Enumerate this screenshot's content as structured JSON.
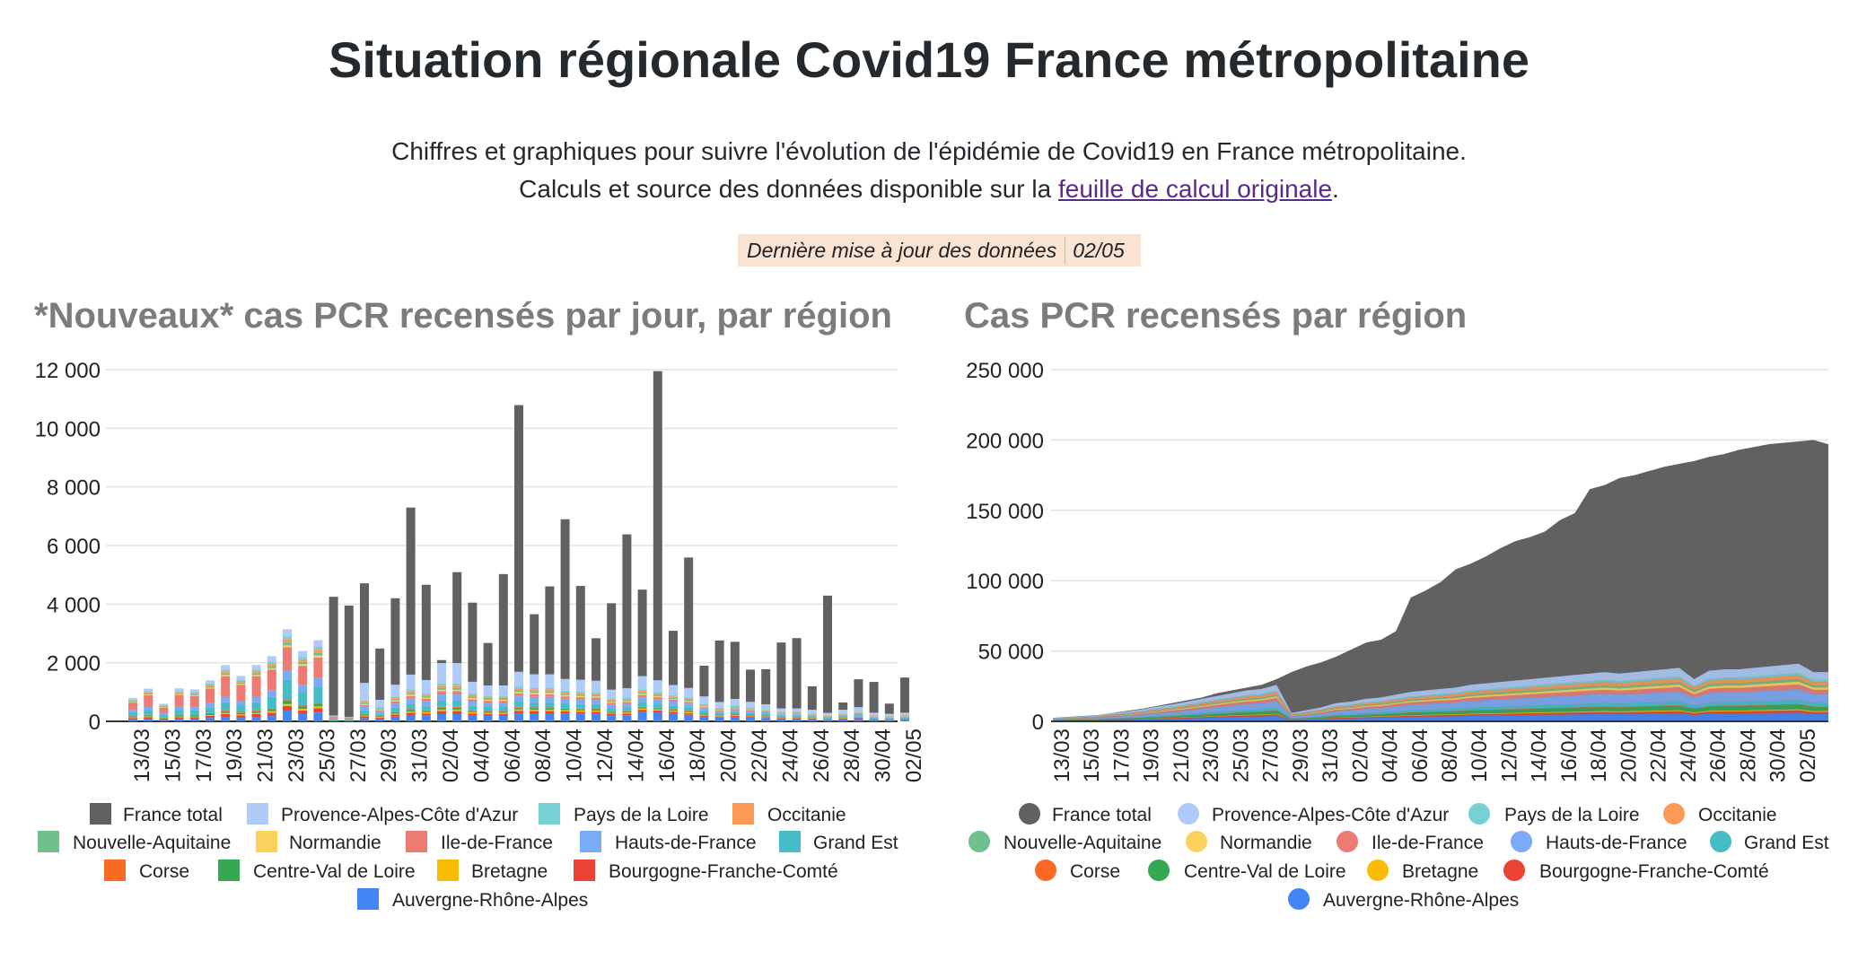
{
  "page": {
    "title": "Situation régionale Covid19 France métropolitaine",
    "subtitle_line1": "Chiffres et graphiques pour suivre l'évolution de l'épidémie de Covid19 en France métropolitaine.",
    "subtitle_line2_prefix": "Calculs et source des données disponible sur la ",
    "subtitle_link": "feuille de calcul originale",
    "subtitle_line2_suffix": ".",
    "update_label": "Dernière mise à jour des données",
    "update_value": "02/05"
  },
  "colors": {
    "France total": "#616161",
    "Provence-Alpes-Côte d'Azur": "#aecbfa",
    "Pays de la Loire": "#78d0d4",
    "Occitanie": "#fb9a57",
    "Nouvelle-Aquitaine": "#6fc08d",
    "Normandie": "#fbd25c",
    "Ile-de-France": "#ee7a74",
    "Hauts-de-France": "#7baaf7",
    "Grand Est": "#46bdc6",
    "Corse": "#fa6a24",
    "Centre-Val de Loire": "#34a853",
    "Bretagne": "#fbbc04",
    "Bourgogne-Franche-Comté": "#ea4335",
    "Auvergne-Rhône-Alpes": "#4285f4"
  },
  "chart_data": [
    {
      "type": "bar",
      "stacked": true,
      "title": "*Nouveaux* cas PCR recensés par jour, par région",
      "ylim": [
        0,
        12000
      ],
      "yticks": [
        "0",
        "2 000",
        "4 000",
        "6 000",
        "8 000",
        "10 000",
        "12 000"
      ],
      "grid": true,
      "legend": "bottom",
      "categories": [
        "13/03",
        "14/03",
        "15/03",
        "16/03",
        "17/03",
        "18/03",
        "19/03",
        "20/03",
        "21/03",
        "22/03",
        "23/03",
        "24/03",
        "25/03",
        "26/03",
        "27/03",
        "28/03",
        "29/03",
        "30/03",
        "31/03",
        "01/04",
        "02/04",
        "03/04",
        "04/04",
        "05/04",
        "06/04",
        "07/04",
        "08/04",
        "09/04",
        "10/04",
        "11/04",
        "12/04",
        "13/04",
        "14/04",
        "15/04",
        "16/04",
        "17/04",
        "18/04",
        "19/04",
        "20/04",
        "21/04",
        "22/04",
        "23/04",
        "24/04",
        "25/04",
        "26/04",
        "27/04",
        "28/04",
        "29/04",
        "30/04",
        "01/05",
        "02/05"
      ],
      "xticks": [
        "13/03",
        "15/03",
        "17/03",
        "19/03",
        "21/03",
        "23/03",
        "25/03",
        "27/03",
        "29/03",
        "31/03",
        "02/04",
        "04/04",
        "06/04",
        "08/04",
        "10/04",
        "12/04",
        "14/04",
        "16/04",
        "18/04",
        "20/04",
        "22/04",
        "24/04",
        "26/04",
        "28/04",
        "30/04",
        "02/05"
      ],
      "regions_total": [
        800,
        1100,
        650,
        1150,
        1100,
        1400,
        1900,
        1550,
        1900,
        2300,
        3150,
        2500,
        2900,
        200,
        150,
        1200,
        800,
        1400,
        1800,
        1550,
        2100,
        2100,
        1500,
        1400,
        1400,
        1900,
        1800,
        1800,
        1600,
        1550,
        1500,
        1150,
        1200,
        1600,
        1450,
        1300,
        1200,
        900,
        700,
        800,
        700,
        600,
        450,
        450,
        400,
        300,
        400,
        500,
        300,
        250,
        300
      ],
      "series": [
        {
          "name": "France total",
          "values": [
            0,
            0,
            0,
            0,
            0,
            0,
            0,
            0,
            0,
            0,
            0,
            0,
            0,
            4050,
            3800,
            3400,
            1750,
            2950,
            5700,
            3250,
            100,
            3100,
            2700,
            1450,
            3800,
            9100,
            2050,
            3000,
            5450,
            3200,
            1450,
            2950,
            5250,
            2950,
            10550,
            1850,
            4450,
            1050,
            2100,
            1950,
            1100,
            1200,
            2250,
            2400,
            800,
            4000,
            250,
            950,
            1050,
            350,
            1200
          ]
        },
        {
          "name": "Provence-Alpes-Côte d'Azur",
          "values": [
            60,
            90,
            50,
            90,
            90,
            110,
            150,
            120,
            150,
            180,
            240,
            200,
            230,
            20,
            15,
            600,
            250,
            400,
            500,
            450,
            700,
            700,
            400,
            350,
            350,
            500,
            450,
            450,
            400,
            400,
            380,
            300,
            320,
            450,
            400,
            350,
            320,
            250,
            200,
            220,
            200,
            170,
            120,
            120,
            110,
            80,
            110,
            140,
            80,
            70,
            80
          ]
        },
        {
          "name": "Pays de la Loire",
          "values": [
            25,
            35,
            20,
            35,
            35,
            45,
            60,
            50,
            60,
            75,
            100,
            80,
            95,
            5,
            5,
            40,
            25,
            45,
            60,
            50,
            70,
            70,
            50,
            45,
            45,
            60,
            60,
            60,
            50,
            50,
            50,
            40,
            40,
            50,
            45,
            40,
            40,
            30,
            20,
            25,
            20,
            20,
            15,
            15,
            15,
            10,
            15,
            15,
            10,
            10,
            10
          ]
        },
        {
          "name": "Occitanie",
          "values": [
            30,
            40,
            25,
            40,
            40,
            50,
            70,
            55,
            70,
            85,
            115,
            90,
            105,
            10,
            5,
            45,
            30,
            50,
            65,
            55,
            75,
            75,
            55,
            50,
            50,
            70,
            65,
            65,
            55,
            55,
            55,
            40,
            45,
            55,
            50,
            45,
            45,
            30,
            25,
            30,
            25,
            20,
            15,
            15,
            15,
            10,
            15,
            20,
            10,
            10,
            10
          ]
        },
        {
          "name": "Nouvelle-Aquitaine",
          "values": [
            25,
            35,
            20,
            35,
            35,
            45,
            60,
            50,
            60,
            75,
            100,
            80,
            95,
            5,
            5,
            40,
            25,
            45,
            60,
            50,
            70,
            70,
            50,
            45,
            45,
            60,
            60,
            60,
            50,
            50,
            50,
            40,
            40,
            50,
            45,
            40,
            40,
            30,
            20,
            25,
            20,
            20,
            15,
            15,
            15,
            10,
            15,
            15,
            10,
            10,
            10
          ]
        },
        {
          "name": "Normandie",
          "values": [
            20,
            25,
            15,
            25,
            25,
            30,
            40,
            35,
            40,
            50,
            65,
            55,
            65,
            5,
            5,
            30,
            20,
            35,
            45,
            40,
            50,
            50,
            40,
            35,
            35,
            45,
            45,
            45,
            40,
            40,
            40,
            30,
            30,
            40,
            35,
            30,
            30,
            25,
            15,
            20,
            15,
            15,
            10,
            10,
            10,
            10,
            10,
            10,
            10,
            5,
            10
          ]
        },
        {
          "name": "Ile-de-France",
          "values": [
            250,
            400,
            180,
            400,
            380,
            500,
            700,
            550,
            700,
            700,
            800,
            650,
            700,
            60,
            40,
            60,
            40,
            70,
            90,
            80,
            110,
            110,
            80,
            70,
            70,
            90,
            90,
            90,
            80,
            80,
            80,
            60,
            60,
            80,
            70,
            60,
            60,
            45,
            35,
            40,
            35,
            30,
            25,
            25,
            20,
            15,
            20,
            25,
            15,
            15,
            15
          ]
        },
        {
          "name": "Hauts-de-France",
          "values": [
            80,
            110,
            65,
            115,
            110,
            140,
            190,
            155,
            190,
            230,
            315,
            250,
            290,
            20,
            15,
            120,
            80,
            140,
            180,
            155,
            210,
            210,
            150,
            140,
            140,
            190,
            180,
            180,
            160,
            155,
            150,
            115,
            120,
            160,
            145,
            130,
            120,
            90,
            70,
            80,
            70,
            60,
            45,
            45,
            40,
            30,
            40,
            50,
            30,
            25,
            30
          ]
        },
        {
          "name": "Grand Est",
          "values": [
            140,
            160,
            95,
            170,
            160,
            200,
            280,
            230,
            280,
            380,
            680,
            460,
            550,
            35,
            25,
            120,
            80,
            140,
            180,
            155,
            210,
            210,
            150,
            140,
            140,
            190,
            180,
            180,
            160,
            155,
            150,
            115,
            120,
            160,
            145,
            130,
            120,
            90,
            70,
            80,
            70,
            60,
            45,
            45,
            40,
            30,
            40,
            50,
            30,
            25,
            30
          ]
        },
        {
          "name": "Corse",
          "values": [
            10,
            15,
            5,
            15,
            15,
            20,
            25,
            20,
            25,
            30,
            40,
            30,
            35,
            0,
            0,
            15,
            10,
            15,
            20,
            15,
            25,
            25,
            15,
            15,
            15,
            20,
            20,
            20,
            15,
            15,
            15,
            10,
            15,
            15,
            15,
            15,
            15,
            10,
            5,
            10,
            5,
            5,
            5,
            5,
            5,
            5,
            5,
            5,
            5,
            5,
            5
          ]
        },
        {
          "name": "Centre-Val de Loire",
          "values": [
            25,
            35,
            20,
            35,
            35,
            45,
            60,
            50,
            60,
            75,
            100,
            80,
            95,
            5,
            5,
            40,
            25,
            45,
            60,
            50,
            70,
            70,
            50,
            45,
            45,
            60,
            60,
            60,
            50,
            50,
            50,
            40,
            40,
            50,
            45,
            40,
            40,
            30,
            20,
            25,
            20,
            20,
            15,
            15,
            15,
            10,
            15,
            15,
            10,
            10,
            10
          ]
        },
        {
          "name": "Bretagne",
          "values": [
            20,
            25,
            15,
            25,
            25,
            30,
            40,
            35,
            40,
            50,
            65,
            55,
            65,
            5,
            5,
            30,
            20,
            35,
            45,
            40,
            50,
            50,
            40,
            35,
            35,
            45,
            45,
            45,
            40,
            40,
            40,
            30,
            30,
            40,
            35,
            30,
            30,
            25,
            15,
            20,
            15,
            15,
            10,
            10,
            10,
            10,
            10,
            10,
            10,
            5,
            10
          ]
        },
        {
          "name": "Bourgogne-Franche-Comté",
          "values": [
            40,
            55,
            35,
            55,
            55,
            70,
            95,
            80,
            95,
            115,
            160,
            125,
            145,
            10,
            10,
            60,
            40,
            70,
            90,
            80,
            105,
            105,
            75,
            70,
            70,
            95,
            90,
            90,
            80,
            80,
            75,
            60,
            60,
            80,
            75,
            65,
            60,
            45,
            35,
            40,
            35,
            30,
            25,
            25,
            20,
            15,
            20,
            25,
            15,
            15,
            15
          ]
        },
        {
          "name": "Auvergne-Rhône-Alpes",
          "values": [
            75,
            90,
            55,
            85,
            85,
            115,
            150,
            120,
            150,
            180,
            365,
            245,
            300,
            20,
            15,
            110,
            90,
            160,
            200,
            190,
            245,
            245,
            195,
            185,
            185,
            265,
            260,
            260,
            265,
            250,
            250,
            200,
            210,
            315,
            295,
            265,
            220,
            150,
            130,
            150,
            135,
            115,
            95,
            95,
            80,
            55,
            80,
            105,
            60,
            50,
            60
          ]
        }
      ]
    },
    {
      "type": "area",
      "stacked": true,
      "title": "Cas PCR recensés par région",
      "ylim": [
        0,
        250000
      ],
      "yticks": [
        "0",
        "50 000",
        "100 000",
        "150 000",
        "200 000",
        "250 000"
      ],
      "grid": true,
      "legend": "bottom",
      "xticks": [
        "13/03",
        "15/03",
        "17/03",
        "19/03",
        "21/03",
        "23/03",
        "25/03",
        "27/03",
        "29/03",
        "31/03",
        "02/04",
        "04/04",
        "06/04",
        "08/04",
        "10/04",
        "12/04",
        "14/04",
        "16/04",
        "18/04",
        "20/04",
        "22/04",
        "24/04",
        "26/04",
        "28/04",
        "30/04",
        "02/05"
      ],
      "total": [
        2500,
        3200,
        3800,
        4500,
        6000,
        7500,
        9000,
        11000,
        13000,
        15000,
        17000,
        20000,
        22000,
        24000,
        26000,
        30000,
        35000,
        39000,
        42000,
        46000,
        51000,
        56000,
        58000,
        64000,
        88000,
        93000,
        99000,
        108000,
        112000,
        117000,
        123000,
        128000,
        131000,
        135000,
        143000,
        148000,
        165000,
        168000,
        173000,
        175000,
        178000,
        181000,
        183000,
        185000,
        188000,
        190000,
        193000,
        195000,
        197000,
        198000,
        199000,
        200000,
        197000
      ],
      "regions_total": [
        2300,
        3000,
        3600,
        4300,
        5800,
        7000,
        8500,
        10500,
        12000,
        14000,
        16000,
        18000,
        20000,
        22000,
        23000,
        26000,
        6000,
        8000,
        10000,
        13000,
        14000,
        16000,
        17000,
        19000,
        21000,
        22000,
        23000,
        24000,
        26000,
        27000,
        28000,
        29000,
        30000,
        31000,
        32000,
        33000,
        34000,
        35000,
        34000,
        35000,
        36000,
        37000,
        38000,
        30000,
        36000,
        37000,
        37000,
        38000,
        39000,
        40000,
        41000,
        35000,
        35000
      ],
      "region_shares": {
        "Provence-Alpes-Côte d'Azur": 0.16,
        "Pays de la Loire": 0.04,
        "Occitanie": 0.07,
        "Nouvelle-Aquitaine": 0.04,
        "Normandie": 0.05,
        "Ile-de-France": 0.08,
        "Hauts-de-France": 0.19,
        "Grand Est": 0.07,
        "Corse": 0.01,
        "Centre-Val de Loire": 0.08,
        "Bretagne": 0.02,
        "Bourgogne-Franche-Comté": 0.04,
        "Auvergne-Rhône-Alpes": 0.15
      }
    }
  ],
  "legend_items": [
    "France total",
    "Provence-Alpes-Côte d'Azur",
    "Pays de la Loire",
    "Occitanie",
    "Nouvelle-Aquitaine",
    "Normandie",
    "Ile-de-France",
    "Hauts-de-France",
    "Grand Est",
    "Corse",
    "Centre-Val de Loire",
    "Bretagne",
    "Bourgogne-Franche-Comté",
    "Auvergne-Rhône-Alpes"
  ]
}
